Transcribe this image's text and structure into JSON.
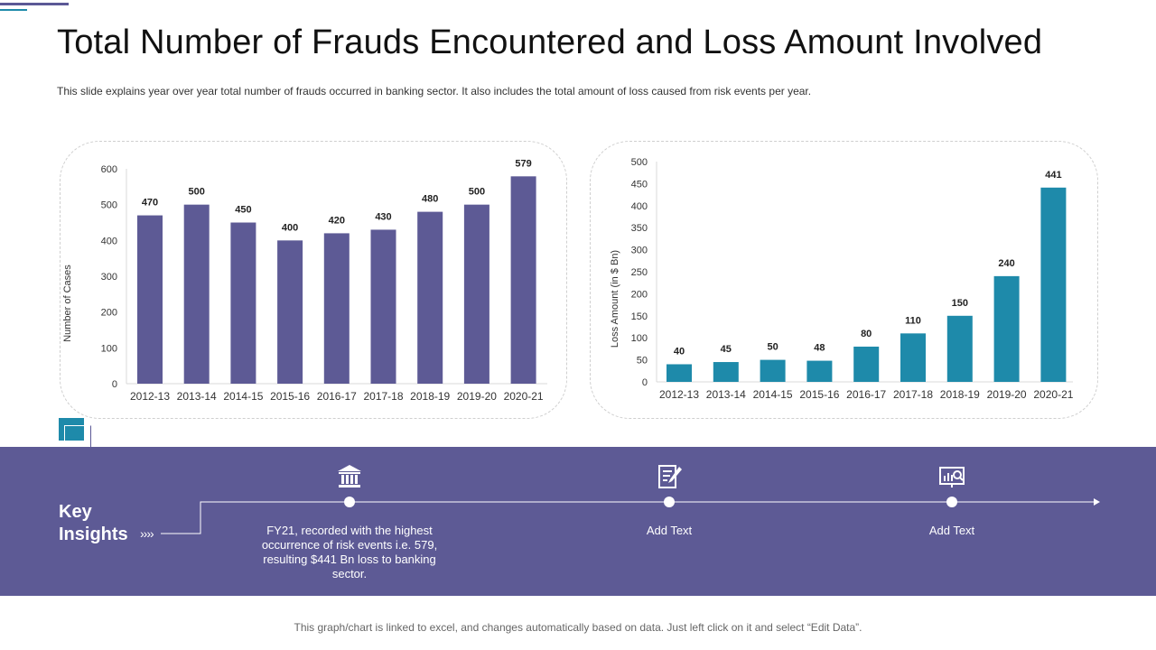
{
  "title": "Total Number of Frauds Encountered and Loss Amount Involved",
  "subtitle": "This slide explains year over year total number of frauds occurred in banking sector. It also includes the total amount of loss caused from risk events per year.",
  "key_insights": {
    "heading_line1": "Key",
    "heading_line2": "Insights",
    "chevrons": "››››",
    "items": [
      {
        "icon": "bank-icon",
        "text": "FY21, recorded with the highest occurrence of risk events i.e. 579, resulting $441 Bn loss to banking sector."
      },
      {
        "icon": "document-edit-icon",
        "text": "Add Text"
      },
      {
        "icon": "presentation-chart-icon",
        "text": "Add Text"
      }
    ]
  },
  "footer": "This graph/chart is linked to excel, and changes automatically based on data. Just left click on it and select “Edit Data”.",
  "colors": {
    "band": "#5d5a95",
    "bar_left": "#5d5a95",
    "bar_right": "#1e8aaa"
  },
  "chart_data": [
    {
      "type": "bar",
      "categories": [
        "2012-13",
        "2013-14",
        "2014-15",
        "2015-16",
        "2016-17",
        "2017-18",
        "2018-19",
        "2019-20",
        "2020-21"
      ],
      "values": [
        470,
        500,
        450,
        400,
        420,
        430,
        480,
        500,
        579
      ],
      "ylabel": "Number of Cases",
      "ylim": [
        0,
        600
      ],
      "yticks": [
        0,
        100,
        200,
        300,
        400,
        500,
        600
      ],
      "color": "#5d5a95",
      "grid": false
    },
    {
      "type": "bar",
      "categories": [
        "2012-13",
        "2013-14",
        "2014-15",
        "2015-16",
        "2016-17",
        "2017-18",
        "2018-19",
        "2019-20",
        "2020-21"
      ],
      "values": [
        40,
        45,
        50,
        48,
        80,
        110,
        150,
        240,
        441
      ],
      "ylabel": "Loss Amount (in $ Bn)",
      "ylim": [
        0,
        500
      ],
      "yticks": [
        0,
        50,
        100,
        150,
        200,
        250,
        300,
        350,
        400,
        450,
        500
      ],
      "color": "#1e8aaa",
      "grid": false
    }
  ]
}
